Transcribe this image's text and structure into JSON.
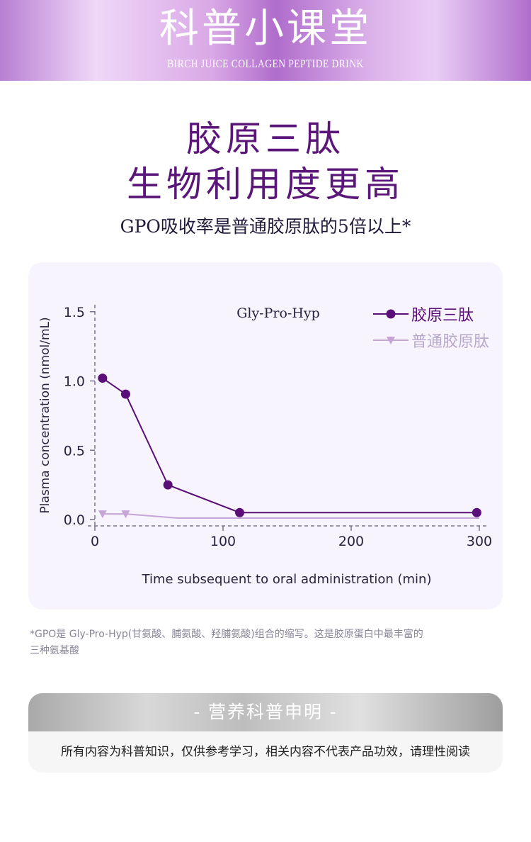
{
  "banner": {
    "title": "科普小课堂",
    "subtitle": "BIRCH JUICE COLLAGEN PEPTIDE DRINK"
  },
  "headline": {
    "line1": "胶原三肽",
    "line2": "生物利用度更高",
    "subtitle": "GPO吸收率是普通胶原肽的5倍以上*"
  },
  "chart_data": {
    "type": "line",
    "title": "Gly-Pro-Hyp",
    "xlabel": "Time subsequent to oral administration (min)",
    "ylabel": "Plasma concentration (nmol/mL)",
    "xlim": [
      0,
      300
    ],
    "ylim": [
      0,
      1.5
    ],
    "xticks": [
      "0",
      "100",
      "200",
      "300"
    ],
    "yticks": [
      "0.0",
      "0.5",
      "1.0",
      "1.5"
    ],
    "legend_position": "top-right",
    "series": [
      {
        "name": "胶原三肽",
        "color": "#5a0f78",
        "marker": "circle",
        "x": [
          6,
          24,
          57,
          113,
          298
        ],
        "y": [
          1.02,
          0.905,
          0.25,
          0.05,
          0.05
        ]
      },
      {
        "name": "普通胶原肽",
        "color": "#c4a5d6",
        "marker": "triangle-down",
        "x": [
          6,
          24,
          65,
          300
        ],
        "y": [
          0.04,
          0.04,
          0.01,
          0.01
        ]
      }
    ]
  },
  "footnote": {
    "line1": "*GPO是 Gly-Pro-Hyp(甘氨酸、脯氨酸、羟脯氨酸)组合的缩写。这是胶原蛋白中最丰富的",
    "line2": "三种氨基酸"
  },
  "disclaimer": {
    "title": "- 营养科普申明 -",
    "body": "所有内容为科普知识，仅供参考学习，相关内容不代表产品功效，请理性阅读"
  }
}
